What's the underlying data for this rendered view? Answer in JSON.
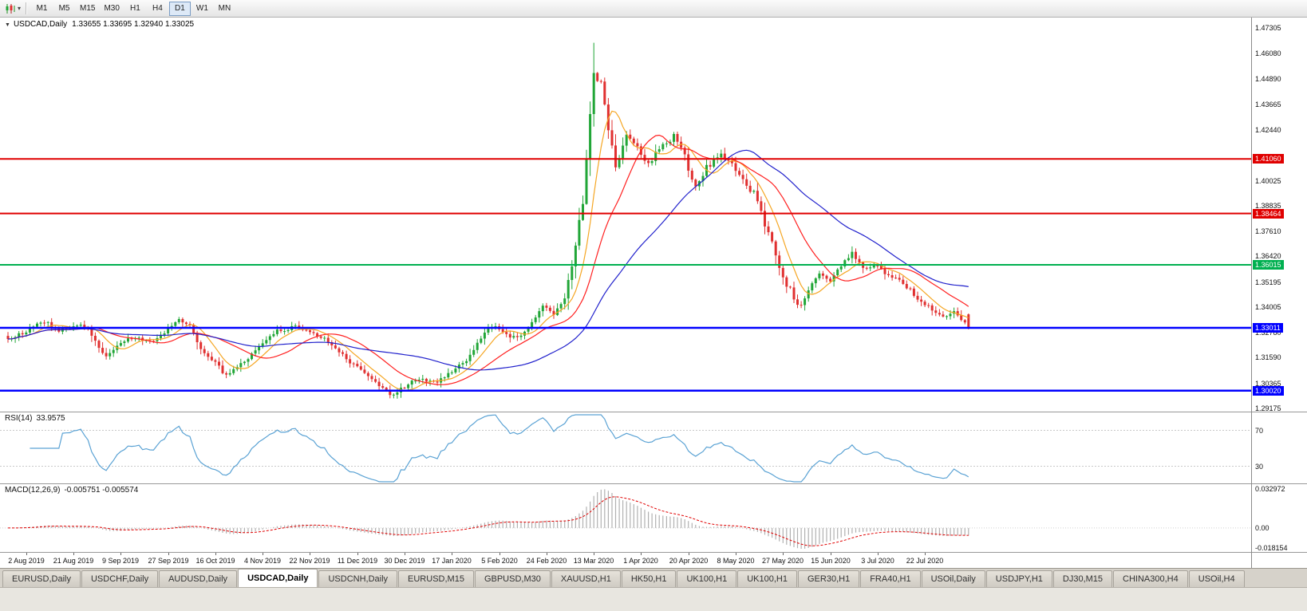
{
  "toolbar": {
    "timeframes": [
      {
        "label": "M1",
        "active": false
      },
      {
        "label": "M5",
        "active": false
      },
      {
        "label": "M15",
        "active": false
      },
      {
        "label": "M30",
        "active": false
      },
      {
        "label": "H1",
        "active": false
      },
      {
        "label": "H4",
        "active": false
      },
      {
        "label": "D1",
        "active": true
      },
      {
        "label": "W1",
        "active": false
      },
      {
        "label": "MN",
        "active": false
      }
    ]
  },
  "main_chart": {
    "title": "USDCAD,Daily",
    "ohlc_text": "1.33655 1.33695 1.32940 1.33025"
  },
  "rsi_panel": {
    "label": "RSI(14)",
    "value": "33.9575"
  },
  "macd_panel": {
    "label": "MACD(12,26,9)",
    "values": "-0.005751 -0.005574",
    "axis_labels": [
      "0.032972",
      "0.00",
      "-0.018154"
    ]
  },
  "chart_data": {
    "type": "candlestick",
    "symbol": "USDCAD",
    "timeframe": "Daily",
    "last_candle": {
      "open": 1.33655,
      "high": 1.33695,
      "low": 1.3294,
      "close": 1.33025
    },
    "candle_count": 265,
    "y_range": [
      1.2902,
      1.478
    ],
    "high_watermark": {
      "index": 161,
      "price": 1.466
    },
    "price_path": [
      [
        0,
        1.324
      ],
      [
        5,
        1.3285
      ],
      [
        10,
        1.3332
      ],
      [
        14,
        1.329
      ],
      [
        18,
        1.3315
      ],
      [
        22,
        1.33
      ],
      [
        25,
        1.3205
      ],
      [
        27,
        1.317
      ],
      [
        31,
        1.3235
      ],
      [
        35,
        1.3255
      ],
      [
        40,
        1.323
      ],
      [
        44,
        1.33
      ],
      [
        47,
        1.334
      ],
      [
        50,
        1.331
      ],
      [
        53,
        1.3205
      ],
      [
        57,
        1.3135
      ],
      [
        60,
        1.307
      ],
      [
        63,
        1.312
      ],
      [
        66,
        1.316
      ],
      [
        70,
        1.323
      ],
      [
        74,
        1.3285
      ],
      [
        79,
        1.3305
      ],
      [
        83,
        1.328
      ],
      [
        87,
        1.325
      ],
      [
        92,
        1.317
      ],
      [
        96,
        1.311
      ],
      [
        100,
        1.306
      ],
      [
        105,
        1.298
      ],
      [
        108,
        1.301
      ],
      [
        112,
        1.3055
      ],
      [
        118,
        1.304
      ],
      [
        122,
        1.309
      ],
      [
        126,
        1.315
      ],
      [
        131,
        1.328
      ],
      [
        134,
        1.3305
      ],
      [
        138,
        1.325
      ],
      [
        141,
        1.327
      ],
      [
        144,
        1.332
      ],
      [
        147,
        1.34
      ],
      [
        150,
        1.338
      ],
      [
        153,
        1.343
      ],
      [
        156,
        1.37
      ],
      [
        158,
        1.39
      ],
      [
        160,
        1.432
      ],
      [
        161,
        1.451
      ],
      [
        163,
        1.446
      ],
      [
        165,
        1.425
      ],
      [
        167,
        1.408
      ],
      [
        169,
        1.416
      ],
      [
        170,
        1.421
      ],
      [
        173,
        1.415
      ],
      [
        176,
        1.409
      ],
      [
        179,
        1.416
      ],
      [
        183,
        1.421
      ],
      [
        186,
        1.412
      ],
      [
        189,
        1.396
      ],
      [
        192,
        1.407
      ],
      [
        196,
        1.413
      ],
      [
        199,
        1.41
      ],
      [
        202,
        1.4
      ],
      [
        205,
        1.394
      ],
      [
        209,
        1.375
      ],
      [
        211,
        1.365
      ],
      [
        213,
        1.355
      ],
      [
        215,
        1.348
      ],
      [
        217,
        1.34
      ],
      [
        219,
        1.3435
      ],
      [
        221,
        1.352
      ],
      [
        223,
        1.356
      ],
      [
        226,
        1.353
      ],
      [
        229,
        1.36
      ],
      [
        232,
        1.3655
      ],
      [
        235,
        1.358
      ],
      [
        238,
        1.3605
      ],
      [
        241,
        1.356
      ],
      [
        244,
        1.354
      ],
      [
        248,
        1.348
      ],
      [
        251,
        1.342
      ],
      [
        254,
        1.339
      ],
      [
        257,
        1.335
      ],
      [
        260,
        1.3385
      ],
      [
        262,
        1.334
      ],
      [
        264,
        1.33025
      ]
    ],
    "price_ticks": [
      "1.47305",
      "1.46080",
      "1.44890",
      "1.43665",
      "1.42440",
      "1.40025",
      "1.38835",
      "1.37610",
      "1.36420",
      "1.35195",
      "1.34005",
      "1.32780",
      "1.31590",
      "1.30365",
      "1.29175"
    ],
    "hlines": [
      {
        "price": 1.4106,
        "label": "1.41060",
        "color": "#e00000",
        "width": 2
      },
      {
        "price": 1.38464,
        "label": "1.38464",
        "color": "#e00000",
        "width": 2
      },
      {
        "price": 1.36015,
        "label": "1.36015",
        "color": "#00b050",
        "width": 2
      },
      {
        "price": 1.33011,
        "label": "1.33011",
        "color": "#0000ff",
        "width": 2.5
      },
      {
        "price": 1.3002,
        "label": "1.30020",
        "color": "#0000ff",
        "width": 2.5
      }
    ],
    "moving_averages": [
      {
        "period": 8,
        "color": "#f5a623"
      },
      {
        "period": 20,
        "color": "#ff2020"
      },
      {
        "period": 45,
        "color": "#2020cc"
      }
    ],
    "x_labels": [
      "2 Aug 2019",
      "21 Aug 2019",
      "9 Sep 2019",
      "27 Sep 2019",
      "16 Oct 2019",
      "4 Nov 2019",
      "22 Nov 2019",
      "11 Dec 2019",
      "30 Dec 2019",
      "17 Jan 2020",
      "5 Feb 2020",
      "24 Feb 2020",
      "13 Mar 2020",
      "1 Apr 2020",
      "20 Apr 2020",
      "8 May 2020",
      "27 May 2020",
      "15 Jun 2020",
      "3 Jul 2020",
      "22 Jul 2020"
    ],
    "x_label_step": 13,
    "x_label_offset": 5,
    "colors": {
      "up": "#21a637",
      "down": "#e03030",
      "rsi_line": "#5aa2d4",
      "macd_hist": "#b0b0b0",
      "macd_signal": "#e00000"
    },
    "rsi": {
      "period": 14,
      "levels": [
        70,
        30
      ],
      "range": [
        10,
        90
      ]
    },
    "macd": {
      "fast": 12,
      "slow": 26,
      "signal": 9,
      "range": [
        -0.0195,
        0.0345
      ]
    }
  },
  "tabs": {
    "items": [
      {
        "label": "EURUSD,Daily",
        "active": false
      },
      {
        "label": "USDCHF,Daily",
        "active": false
      },
      {
        "label": "AUDUSD,Daily",
        "active": false
      },
      {
        "label": "USDCAD,Daily",
        "active": true
      },
      {
        "label": "USDCNH,Daily",
        "active": false
      },
      {
        "label": "EURUSD,M15",
        "active": false
      },
      {
        "label": "GBPUSD,M30",
        "active": false
      },
      {
        "label": "XAUUSD,H1",
        "active": false
      },
      {
        "label": "HK50,H1",
        "active": false
      },
      {
        "label": "UK100,H1",
        "active": false
      },
      {
        "label": "UK100,H1",
        "active": false
      },
      {
        "label": "GER30,H1",
        "active": false
      },
      {
        "label": "FRA40,H1",
        "active": false
      },
      {
        "label": "USOil,Daily",
        "active": false
      },
      {
        "label": "USDJPY,H1",
        "active": false
      },
      {
        "label": "DJ30,M15",
        "active": false
      },
      {
        "label": "CHINA300,H4",
        "active": false
      },
      {
        "label": "USOil,H4",
        "active": false
      }
    ]
  }
}
